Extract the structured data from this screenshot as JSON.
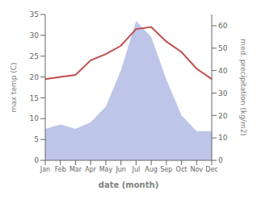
{
  "chart_data": {
    "type": "line",
    "categories": [
      "Jan",
      "Feb",
      "Mar",
      "Apr",
      "May",
      "Jun",
      "Jul",
      "Aug",
      "Sep",
      "Oct",
      "Nov",
      "Dec"
    ],
    "x_label": "date (month)",
    "y_label": "max temp (C)",
    "y2_label": "med. precipitation (kg/m2)",
    "ylim": [
      0,
      35
    ],
    "yticks": [
      0,
      5,
      10,
      15,
      20,
      25,
      30,
      35
    ],
    "y2lim": [
      0,
      65
    ],
    "y2ticks": [
      0,
      10,
      20,
      30,
      40,
      50,
      60
    ],
    "grid": false,
    "series": [
      {
        "type": "area",
        "axis": "y2",
        "color": "#bdc5e8",
        "values": [
          14,
          16,
          14,
          17,
          24,
          40,
          62,
          55,
          36,
          20,
          13,
          13
        ]
      },
      {
        "type": "line",
        "color": "#c0504d",
        "values": [
          19.5,
          20.0,
          20.5,
          24.0,
          25.5,
          27.5,
          31.5,
          32.0,
          28.5,
          26.0,
          22.0,
          19.5
        ]
      }
    ]
  }
}
